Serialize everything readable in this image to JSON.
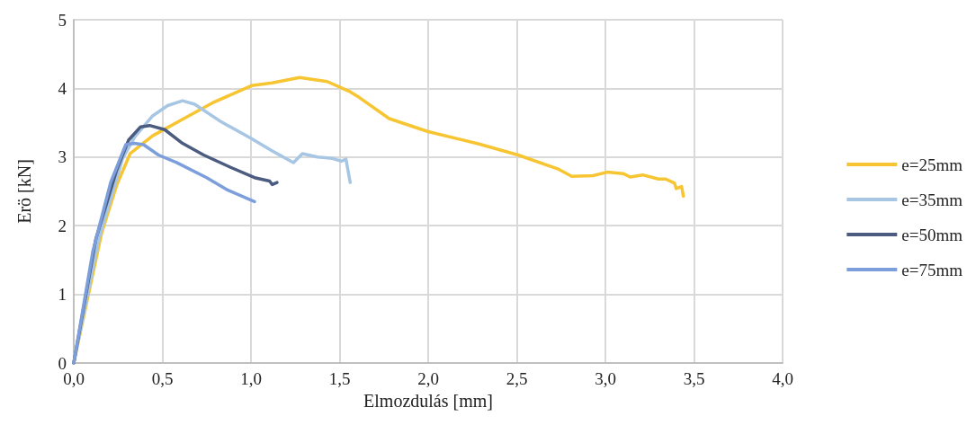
{
  "chart_data": {
    "type": "line",
    "xlabel": "Elmozdulás [mm]",
    "ylabel": "Erö [kN]",
    "xlim": [
      0,
      4
    ],
    "xticks": [
      {
        "value": 0,
        "label": "0,0"
      },
      {
        "value": 0.5,
        "label": "0,5"
      },
      {
        "value": 1,
        "label": "1,0"
      },
      {
        "value": 1.5,
        "label": "1,5"
      },
      {
        "value": 2,
        "label": "2,0"
      },
      {
        "value": 2.5,
        "label": "2,5"
      },
      {
        "value": 3,
        "label": "3,0"
      },
      {
        "value": 3.5,
        "label": "3,5"
      },
      {
        "value": 4,
        "label": "4,0"
      }
    ],
    "ylim": [
      0,
      5
    ],
    "yticks": [
      0,
      1,
      2,
      3,
      4,
      5
    ],
    "grid": true,
    "legend": "right",
    "marker": "none",
    "line_style": "solid",
    "series": [
      {
        "name": "e=25mm",
        "color": "#f7c531",
        "x": [
          0,
          0.157,
          0.242,
          0.318,
          0.445,
          0.614,
          0.783,
          1.003,
          1.12,
          1.274,
          1.43,
          1.56,
          1.61,
          1.78,
          2.0,
          2.287,
          2.507,
          2.73,
          2.81,
          2.93,
          3.01,
          3.1,
          3.14,
          3.21,
          3.3,
          3.34,
          3.39,
          3.4,
          3.43,
          3.44
        ],
        "values": [
          0,
          1.89,
          2.59,
          3.05,
          3.31,
          3.55,
          3.79,
          4.04,
          4.08,
          4.16,
          4.1,
          3.95,
          3.87,
          3.56,
          3.37,
          3.19,
          3.03,
          2.83,
          2.72,
          2.73,
          2.78,
          2.76,
          2.71,
          2.74,
          2.68,
          2.68,
          2.62,
          2.54,
          2.57,
          2.43
        ]
      },
      {
        "name": "e=35mm",
        "color": "#a6c6e4",
        "x": [
          0,
          0.14,
          0.276,
          0.343,
          0.445,
          0.53,
          0.614,
          0.682,
          0.834,
          1.003,
          1.12,
          1.24,
          1.29,
          1.376,
          1.46,
          1.51,
          1.536,
          1.56
        ],
        "values": [
          0,
          1.8,
          2.98,
          3.29,
          3.6,
          3.75,
          3.82,
          3.77,
          3.51,
          3.27,
          3.09,
          2.92,
          3.05,
          3.0,
          2.98,
          2.94,
          2.97,
          2.63
        ]
      },
      {
        "name": "e=50mm",
        "color": "#4b5c80",
        "x": [
          0,
          0.124,
          0.242,
          0.31,
          0.377,
          0.428,
          0.513,
          0.614,
          0.733,
          0.885,
          1.02,
          1.105,
          1.12,
          1.147
        ],
        "values": [
          0,
          1.8,
          2.81,
          3.25,
          3.44,
          3.46,
          3.4,
          3.2,
          3.03,
          2.85,
          2.7,
          2.65,
          2.6,
          2.63
        ]
      },
      {
        "name": "e=75mm",
        "color": "#7c9fdc",
        "x": [
          0,
          0.107,
          0.208,
          0.293,
          0.343,
          0.394,
          0.478,
          0.58,
          0.75,
          0.868,
          1.02
        ],
        "values": [
          0,
          1.62,
          2.63,
          3.18,
          3.2,
          3.18,
          3.03,
          2.92,
          2.7,
          2.52,
          2.35
        ]
      }
    ]
  }
}
